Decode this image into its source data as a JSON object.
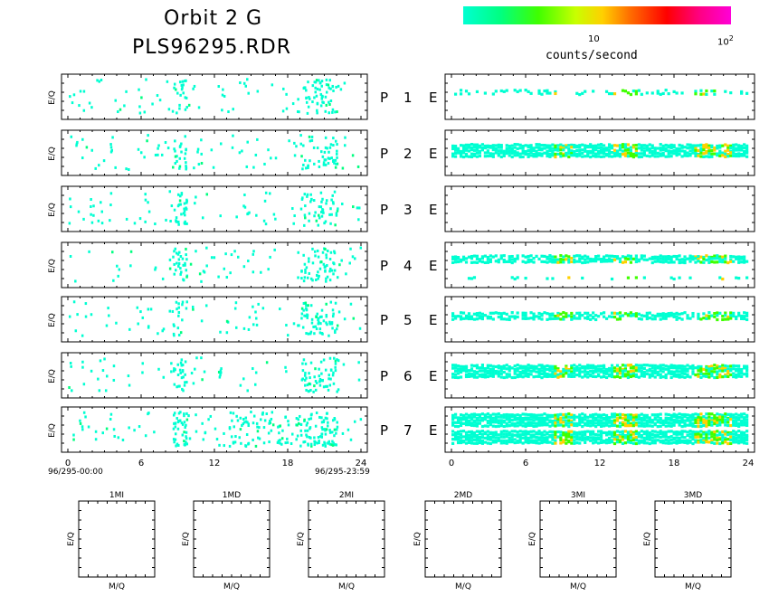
{
  "header": {
    "title_line1": "Orbit 2 G",
    "title_line2": "PLS96295.RDR"
  },
  "colorbar": {
    "tick_10": "10",
    "tick_100_base": "10",
    "tick_100_exp": "2",
    "unit_label": "counts/second",
    "gradient": [
      "#00ffd2",
      "#00ff80",
      "#3fff00",
      "#c8ff00",
      "#ffd000",
      "#ff7000",
      "#ff0000",
      "#ff0080",
      "#ff00d8"
    ]
  },
  "chart_data": [
    {
      "type": "heatmap",
      "name": "ion-spectrograms",
      "ylabel": "E/Q",
      "panel_labels": [
        "P 1 E",
        "P 2 E",
        "P 3 E",
        "P 4 E",
        "P 5 E",
        "P 6 E",
        "P 7 E"
      ],
      "x_ticks": [
        "0",
        "6",
        "12",
        "18",
        "24"
      ],
      "xlim": [
        0,
        24
      ],
      "time_start": "96/295-00:00",
      "time_end": "96/295-23:59",
      "color_scale": "log counts/second, 1 to 100"
    },
    {
      "type": "heatmap",
      "name": "electron-spectrograms",
      "panel_labels": [
        "P 1 E",
        "P 2 E",
        "P 3 E",
        "P 4 E",
        "P 5 E",
        "P 6 E",
        "P 7 E"
      ],
      "x_ticks": [
        "0",
        "6",
        "12",
        "18",
        "24"
      ],
      "xlim": [
        0,
        24
      ]
    },
    {
      "type": "heatmap",
      "name": "mass-per-charge-panels",
      "panels": [
        {
          "title": "1MI",
          "xlabel": "M/Q",
          "ylabel": "E/Q"
        },
        {
          "title": "1MD",
          "xlabel": "M/Q",
          "ylabel": "E/Q"
        },
        {
          "title": "2MI",
          "xlabel": "M/Q",
          "ylabel": "E/Q"
        },
        {
          "title": "2MD",
          "xlabel": "M/Q",
          "ylabel": "E/Q"
        },
        {
          "title": "3MI",
          "xlabel": "M/Q",
          "ylabel": "E/Q"
        },
        {
          "title": "3MD",
          "xlabel": "M/Q",
          "ylabel": "E/Q"
        }
      ]
    }
  ]
}
